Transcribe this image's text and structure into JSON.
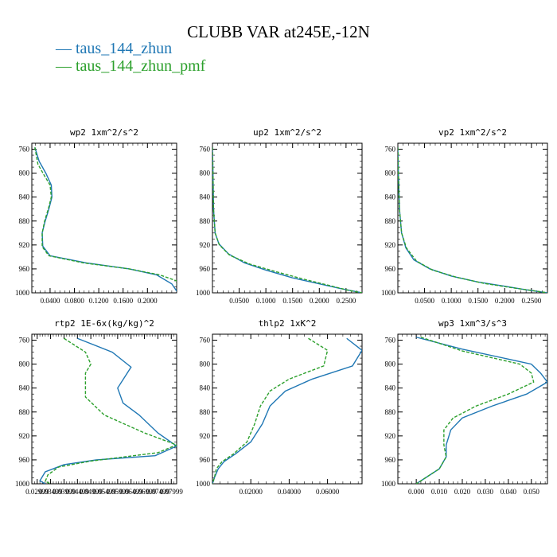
{
  "title": "CLUBB VAR at245E,-12N",
  "legend": [
    {
      "name": "taus_144_zhun",
      "color": "#1f77b4",
      "dash": "solid"
    },
    {
      "name": "taus_144_zhun_pmf",
      "color": "#2ca02c",
      "dash": "dashed"
    }
  ],
  "chart_data": [
    {
      "type": "line",
      "title": "wp2  1xm^2/s^2",
      "ylim": [
        750,
        1000
      ],
      "yticks": [
        760,
        800,
        840,
        880,
        920,
        960,
        1000
      ],
      "xlim": [
        0.01,
        0.248
      ],
      "xticks": [
        0.04,
        0.08,
        0.12,
        0.16,
        0.2
      ],
      "xticklabels": [
        "0.0400",
        "0.0800",
        "0.1200",
        "0.1600",
        "0.2000"
      ],
      "series": [
        {
          "name": "taus_144_zhun",
          "points": [
            [
              0.015,
              757
            ],
            [
              0.022,
              780
            ],
            [
              0.033,
              800
            ],
            [
              0.042,
              820
            ],
            [
              0.043,
              840
            ],
            [
              0.038,
              860
            ],
            [
              0.032,
              880
            ],
            [
              0.027,
              900
            ],
            [
              0.028,
              922
            ],
            [
              0.04,
              938
            ],
            [
              0.1,
              950
            ],
            [
              0.17,
              960
            ],
            [
              0.215,
              970
            ],
            [
              0.24,
              985
            ],
            [
              0.25,
              1000
            ]
          ]
        },
        {
          "name": "taus_144_zhun_pmf",
          "points": [
            [
              0.015,
              757
            ],
            [
              0.02,
              785
            ],
            [
              0.03,
              803
            ],
            [
              0.04,
              820
            ],
            [
              0.042,
              840
            ],
            [
              0.037,
              860
            ],
            [
              0.031,
              880
            ],
            [
              0.027,
              900
            ],
            [
              0.027,
              923
            ],
            [
              0.038,
              938
            ],
            [
              0.095,
              950
            ],
            [
              0.17,
              960
            ],
            [
              0.22,
              970
            ],
            [
              0.248,
              980
            ],
            [
              0.25,
              1000
            ]
          ]
        }
      ]
    },
    {
      "type": "line",
      "title": "up2  1xm^2/s^2",
      "ylim": [
        750,
        1000
      ],
      "yticks": [
        760,
        800,
        840,
        880,
        920,
        960,
        1000
      ],
      "xlim": [
        0.0,
        0.28
      ],
      "xticks": [
        0.05,
        0.1,
        0.15,
        0.2,
        0.25
      ],
      "xticklabels": [
        "0.0500",
        "0.1000",
        "0.1500",
        "0.2000",
        "0.2500"
      ],
      "series": [
        {
          "name": "taus_144_zhun",
          "points": [
            [
              0.0,
              757
            ],
            [
              0.001,
              800
            ],
            [
              0.002,
              860
            ],
            [
              0.005,
              900
            ],
            [
              0.012,
              918
            ],
            [
              0.03,
              935
            ],
            [
              0.06,
              950
            ],
            [
              0.1,
              962
            ],
            [
              0.15,
              975
            ],
            [
              0.2,
              985
            ],
            [
              0.24,
              993
            ],
            [
              0.28,
              1000
            ]
          ]
        },
        {
          "name": "taus_144_zhun_pmf",
          "points": [
            [
              0.0,
              757
            ],
            [
              0.001,
              800
            ],
            [
              0.002,
              860
            ],
            [
              0.005,
              900
            ],
            [
              0.013,
              920
            ],
            [
              0.032,
              937
            ],
            [
              0.07,
              952
            ],
            [
              0.12,
              965
            ],
            [
              0.17,
              977
            ],
            [
              0.22,
              988
            ],
            [
              0.255,
              996
            ],
            [
              0.28,
              1000
            ]
          ]
        }
      ]
    },
    {
      "type": "line",
      "title": "vp2  1xm^2/s^2",
      "ylim": [
        750,
        1000
      ],
      "yticks": [
        760,
        800,
        840,
        880,
        920,
        960,
        1000
      ],
      "xlim": [
        0.0,
        0.28
      ],
      "xticks": [
        0.05,
        0.1,
        0.15,
        0.2,
        0.25
      ],
      "xticklabels": [
        "0.0500",
        "0.1000",
        "0.1500",
        "0.2000",
        "0.2500"
      ],
      "series": [
        {
          "name": "taus_144_zhun",
          "points": [
            [
              0.0,
              757
            ],
            [
              0.001,
              800
            ],
            [
              0.003,
              860
            ],
            [
              0.007,
              900
            ],
            [
              0.015,
              925
            ],
            [
              0.03,
              945
            ],
            [
              0.06,
              960
            ],
            [
              0.1,
              972
            ],
            [
              0.15,
              982
            ],
            [
              0.2,
              989
            ],
            [
              0.24,
              995
            ],
            [
              0.28,
              1000
            ]
          ]
        },
        {
          "name": "taus_144_zhun_pmf",
          "points": [
            [
              0.0,
              757
            ],
            [
              0.001,
              800
            ],
            [
              0.003,
              860
            ],
            [
              0.007,
              900
            ],
            [
              0.016,
              925
            ],
            [
              0.035,
              947
            ],
            [
              0.065,
              962
            ],
            [
              0.11,
              974
            ],
            [
              0.16,
              984
            ],
            [
              0.21,
              991
            ],
            [
              0.25,
              996
            ],
            [
              0.28,
              1000
            ]
          ]
        }
      ]
    },
    {
      "type": "line",
      "title": "rtp2  1E-6x(kg/kg)^2",
      "ylim": [
        750,
        1000
      ],
      "yticks": [
        760,
        800,
        840,
        880,
        920,
        960,
        1000
      ],
      "xlim": [
        0.028,
        0.082
      ],
      "xticks": [
        0.03,
        0.035,
        0.04,
        0.045,
        0.05,
        0.055,
        0.06,
        0.065,
        0.07,
        0.075,
        0.08
      ],
      "xticklabels": [
        "0.02999",
        "0.03499",
        "0.03999",
        "0.04499",
        "0.04999",
        "0.05499",
        "0.05999",
        "0.06499",
        "0.06999",
        "0.07499",
        "0.07999"
      ],
      "series": [
        {
          "name": "taus_144_zhun",
          "points": [
            [
              0.045,
              757
            ],
            [
              0.058,
              780
            ],
            [
              0.065,
              805
            ],
            [
              0.06,
              840
            ],
            [
              0.062,
              865
            ],
            [
              0.068,
              885
            ],
            [
              0.075,
              915
            ],
            [
              0.082,
              937
            ],
            [
              0.074,
              953
            ],
            [
              0.052,
              960
            ],
            [
              0.04,
              968
            ],
            [
              0.033,
              980
            ],
            [
              0.031,
              995
            ],
            [
              0.033,
              1000
            ]
          ]
        },
        {
          "name": "taus_144_zhun_pmf",
          "points": [
            [
              0.04,
              757
            ],
            [
              0.048,
              780
            ],
            [
              0.05,
              800
            ],
            [
              0.048,
              815
            ],
            [
              0.048,
              855
            ],
            [
              0.055,
              885
            ],
            [
              0.07,
              915
            ],
            [
              0.082,
              935
            ],
            [
              0.075,
              948
            ],
            [
              0.05,
              962
            ],
            [
              0.038,
              972
            ],
            [
              0.034,
              985
            ],
            [
              0.033,
              996
            ],
            [
              0.035,
              1000
            ]
          ]
        }
      ]
    },
    {
      "type": "line",
      "title": "thlp2  1xK^2",
      "ylim": [
        750,
        1000
      ],
      "yticks": [
        760,
        800,
        840,
        880,
        920,
        960,
        1000
      ],
      "xlim": [
        0.0,
        0.078
      ],
      "xticks": [
        0.02,
        0.04,
        0.06
      ],
      "xticklabels": [
        "0.02000",
        "0.04000",
        "0.06000"
      ],
      "series": [
        {
          "name": "taus_144_zhun",
          "points": [
            [
              0.07,
              757
            ],
            [
              0.078,
              777
            ],
            [
              0.073,
              803
            ],
            [
              0.052,
              825
            ],
            [
              0.038,
              845
            ],
            [
              0.03,
              870
            ],
            [
              0.026,
              900
            ],
            [
              0.02,
              930
            ],
            [
              0.012,
              950
            ],
            [
              0.006,
              963
            ],
            [
              0.003,
              975
            ],
            [
              0.001,
              990
            ],
            [
              0.0,
              1000
            ]
          ]
        },
        {
          "name": "taus_144_zhun_pmf",
          "points": [
            [
              0.05,
              757
            ],
            [
              0.06,
              777
            ],
            [
              0.058,
              803
            ],
            [
              0.04,
              825
            ],
            [
              0.03,
              845
            ],
            [
              0.025,
              870
            ],
            [
              0.022,
              900
            ],
            [
              0.018,
              930
            ],
            [
              0.011,
              950
            ],
            [
              0.005,
              963
            ],
            [
              0.002,
              975
            ],
            [
              0.001,
              990
            ],
            [
              0.0,
              1000
            ]
          ]
        }
      ]
    },
    {
      "type": "line",
      "title": "wp3  1xm^3/s^3",
      "ylim": [
        750,
        1000
      ],
      "yticks": [
        760,
        800,
        840,
        880,
        920,
        960,
        1000
      ],
      "xlim": [
        -0.008,
        0.057
      ],
      "xticks": [
        0.0,
        0.01,
        0.02,
        0.03,
        0.04,
        0.05
      ],
      "xticklabels": [
        "0.000",
        "0.010",
        "0.020",
        "0.030",
        "0.040",
        "0.050"
      ],
      "series": [
        {
          "name": "taus_144_zhun",
          "points": [
            [
              0.0,
              755
            ],
            [
              0.02,
              775
            ],
            [
              0.05,
              800
            ],
            [
              0.054,
              815
            ],
            [
              0.057,
              830
            ],
            [
              0.048,
              850
            ],
            [
              0.033,
              870
            ],
            [
              0.02,
              890
            ],
            [
              0.015,
              910
            ],
            [
              0.013,
              935
            ],
            [
              0.013,
              955
            ],
            [
              0.01,
              975
            ],
            [
              0.004,
              990
            ],
            [
              0.0,
              1000
            ]
          ]
        },
        {
          "name": "taus_144_zhun_pmf",
          "points": [
            [
              0.002,
              755
            ],
            [
              0.02,
              778
            ],
            [
              0.045,
              800
            ],
            [
              0.05,
              815
            ],
            [
              0.051,
              830
            ],
            [
              0.04,
              850
            ],
            [
              0.026,
              870
            ],
            [
              0.016,
              890
            ],
            [
              0.012,
              910
            ],
            [
              0.012,
              935
            ],
            [
              0.013,
              955
            ],
            [
              0.01,
              975
            ],
            [
              0.004,
              990
            ],
            [
              0.0,
              1000
            ]
          ]
        }
      ]
    }
  ]
}
